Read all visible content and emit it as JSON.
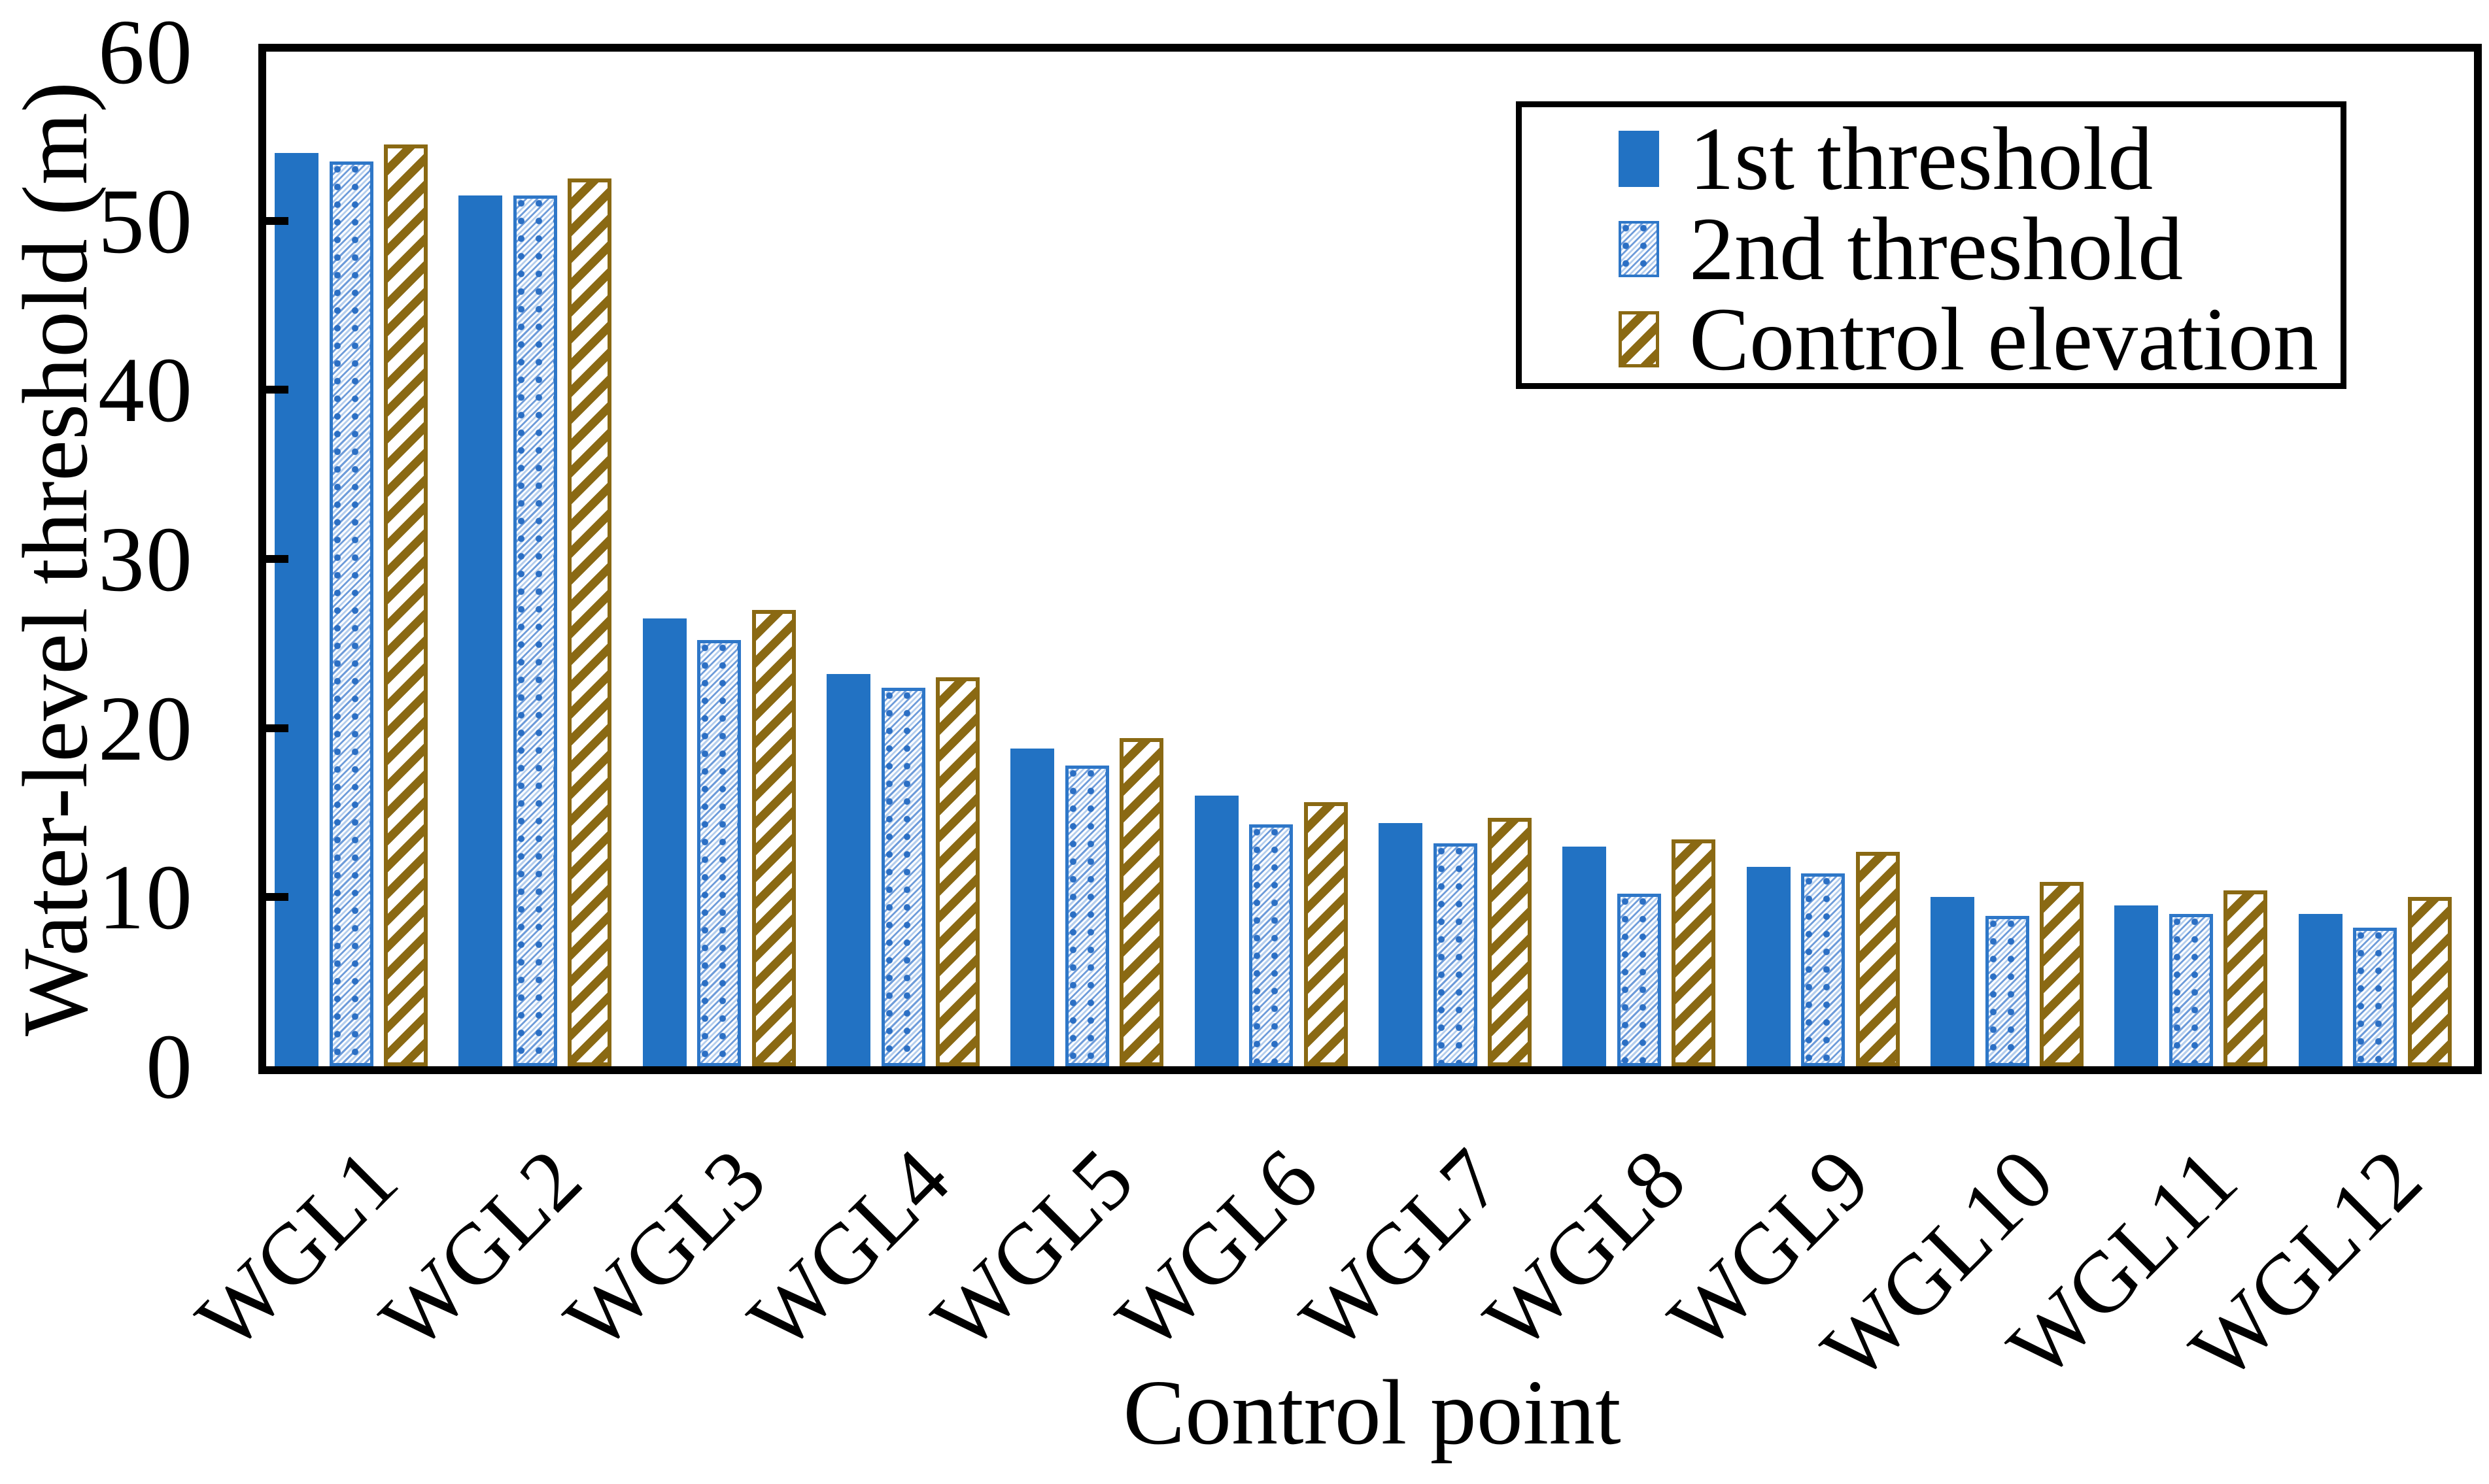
{
  "figure": {
    "background": "#ffffff",
    "text_color": "#000000"
  },
  "axes": {
    "y_title": "Water-level threshold (m)",
    "x_title": "Control point"
  },
  "legend": {
    "items": [
      {
        "label": "1st threshold"
      },
      {
        "label": "2nd threshold"
      },
      {
        "label": "Control elevation"
      }
    ]
  },
  "chart_data": {
    "type": "bar",
    "title": "",
    "xlabel": "Control point",
    "ylabel": "Water-level threshold (m)",
    "categories": [
      "WGL1",
      "WGL2",
      "WGL3",
      "WGL4",
      "WGL5",
      "WGL6",
      "WGL7",
      "WGL8",
      "WGL9",
      "WGL10",
      "WGL11",
      "WGL12"
    ],
    "series": [
      {
        "name": "1st threshold",
        "style": "solid-blue",
        "color": "#2272C3",
        "values": [
          54.0,
          51.5,
          26.5,
          23.2,
          18.8,
          16.0,
          14.4,
          13.0,
          11.8,
          10.0,
          9.5,
          9.0
        ]
      },
      {
        "name": "2nd threshold",
        "style": "dotted-diagonal-hatch-blue",
        "color": "#2E77C8",
        "values": [
          53.5,
          51.5,
          25.2,
          22.4,
          17.8,
          14.3,
          13.2,
          10.2,
          11.4,
          8.9,
          9.0,
          8.2
        ]
      },
      {
        "name": "Control elevation",
        "style": "diagonal-hatch-gold",
        "color": "#8A6913",
        "values": [
          54.5,
          52.5,
          27.0,
          23.0,
          19.4,
          15.6,
          14.7,
          13.4,
          12.7,
          10.9,
          10.4,
          10.0
        ]
      }
    ],
    "ylim": [
      0,
      60
    ],
    "yticks": [
      0,
      10,
      20,
      30,
      40,
      50,
      60
    ],
    "grid": false,
    "legend_position": "top-right",
    "bar_orientation": "vertical"
  }
}
